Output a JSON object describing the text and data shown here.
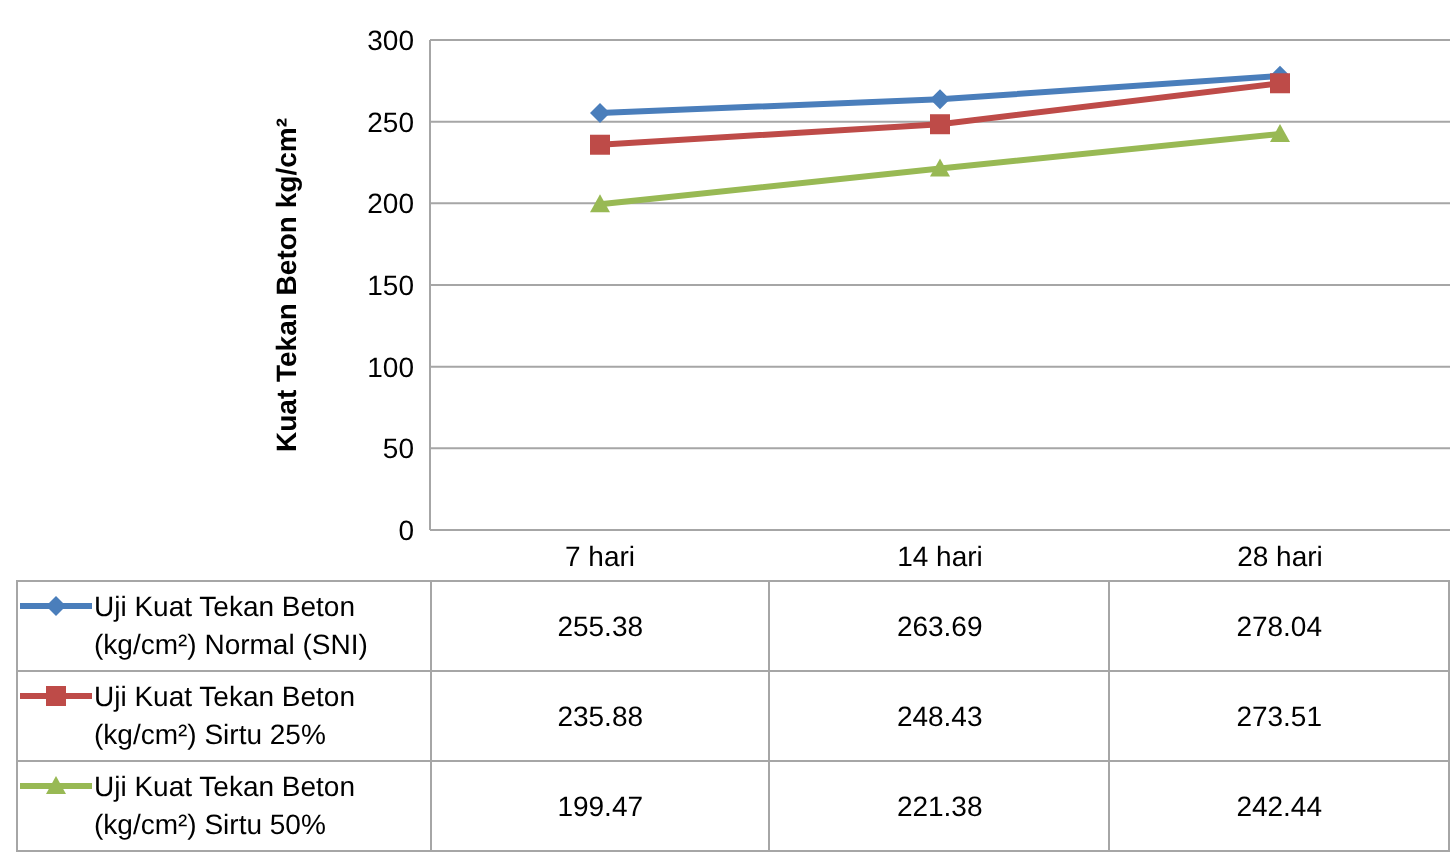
{
  "chart_data": {
    "type": "line",
    "ylabel": "Kuat Tekan Beton kg/cm²",
    "categories": [
      "7 hari",
      "14 hari",
      "28 hari"
    ],
    "series": [
      {
        "name": "Uji Kuat Tekan Beton (kg/cm²) Normal (SNI)",
        "color": "#4a7ebb",
        "marker": "diamond",
        "values": [
          255.38,
          263.69,
          278.04
        ]
      },
      {
        "name": "Uji Kuat Tekan Beton (kg/cm²) Sirtu 25%",
        "color": "#be4b48",
        "marker": "square",
        "values": [
          235.88,
          248.43,
          273.51
        ]
      },
      {
        "name": "Uji Kuat Tekan Beton (kg/cm²) Sirtu 50%",
        "color": "#98b954",
        "marker": "triangle",
        "values": [
          199.47,
          221.38,
          242.44
        ]
      }
    ],
    "ylim": [
      0,
      300
    ],
    "yticks": [
      0,
      50,
      100,
      150,
      200,
      250,
      300
    ],
    "grid": "y",
    "legend": "bottom",
    "data_labels": true,
    "line_style": "solid"
  }
}
